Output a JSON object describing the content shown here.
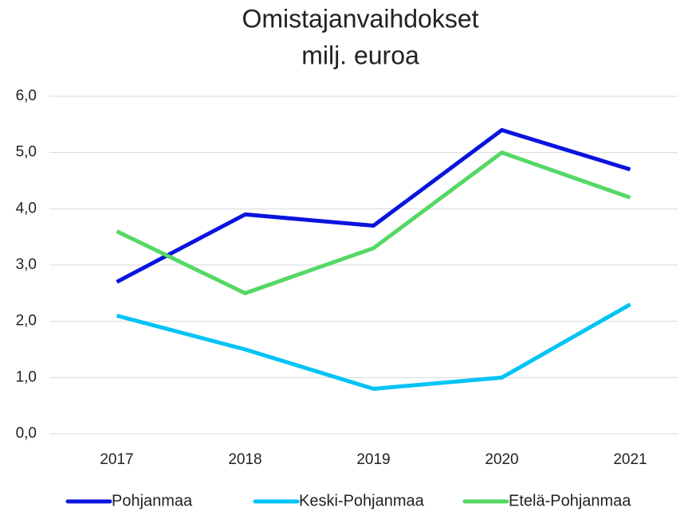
{
  "chart_data": {
    "type": "line",
    "title": "Omistajanvaihdokset",
    "subtitle": "milj. euroa",
    "categories": [
      "2017",
      "2018",
      "2019",
      "2020",
      "2021"
    ],
    "series": [
      {
        "name": "Pohjanmaa",
        "color": "#0a14de",
        "values": [
          2.7,
          3.9,
          3.7,
          5.4,
          4.7
        ]
      },
      {
        "name": "Keski-Pohjanmaa",
        "color": "#00c3f5",
        "values": [
          2.1,
          1.5,
          0.8,
          1.0,
          2.3
        ]
      },
      {
        "name": "Etelä-Pohjanmaa",
        "color": "#55d865",
        "values": [
          3.6,
          2.5,
          3.3,
          5.0,
          4.2
        ]
      }
    ],
    "ylim": [
      0,
      6
    ],
    "yticks": [
      {
        "value": 0,
        "label": "0,0"
      },
      {
        "value": 1,
        "label": "1,0"
      },
      {
        "value": 2,
        "label": "2,0"
      },
      {
        "value": 3,
        "label": "3,0"
      },
      {
        "value": 4,
        "label": "4,0"
      },
      {
        "value": 5,
        "label": "5,0"
      },
      {
        "value": 6,
        "label": "6,0"
      }
    ],
    "grid": true,
    "legend": "bottom"
  }
}
